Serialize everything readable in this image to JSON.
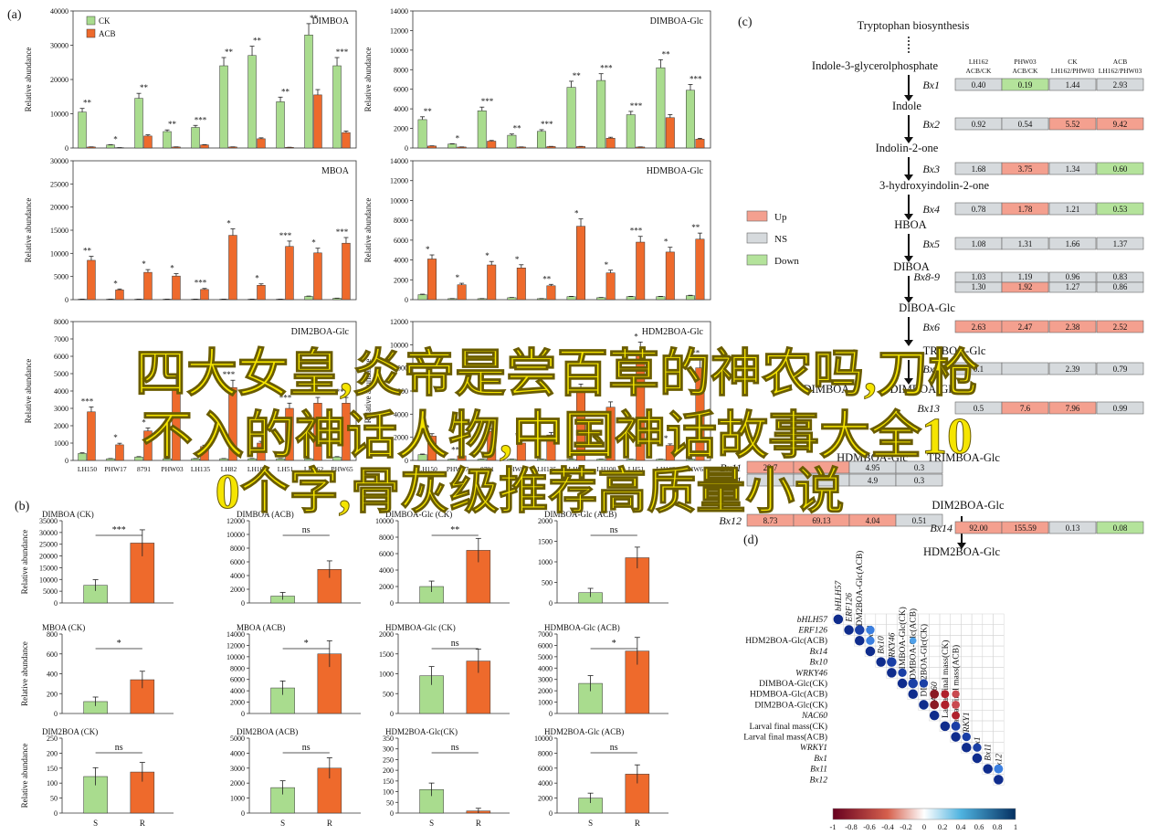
{
  "panel_labels": {
    "a": "(a)",
    "b": "(b)",
    "c": "(c)",
    "d": "(d)"
  },
  "y_axis_label": "Relative abundance",
  "legend_a": {
    "ck": "CK",
    "acb": "ACB"
  },
  "legend_c": {
    "up": "Up",
    "ns": "NS",
    "down": "Down"
  },
  "colors": {
    "ck": "#a9dc8e",
    "acb": "#ee6a2c",
    "up": "#f4a08f",
    "ns": "#d6dadd",
    "down": "#b4e39b",
    "dot_pos": "#0f2c8c",
    "dot_neg": "#b0212c"
  },
  "overlay_text": {
    "line1": "四大女皇,炎帝是尝百草的神农吗,刀枪",
    "line2": "不入的神话人物,中国神话故事大全10",
    "line3": "0个字,骨灰级推荐高质量小说"
  },
  "chart_data": [
    {
      "type": "bar",
      "panel": "a",
      "title": "DIMBOA",
      "categories": [
        "LH150",
        "PHW17",
        "8791",
        "PHW03",
        "LH135",
        "LH82",
        "LH100",
        "LH51",
        "LH162",
        "PHW65"
      ],
      "series": [
        {
          "name": "CK",
          "values": [
            10500,
            900,
            14500,
            4800,
            6000,
            24000,
            27000,
            13500,
            33000,
            24000
          ]
        },
        {
          "name": "ACB",
          "values": [
            300,
            100,
            3500,
            300,
            900,
            300,
            2700,
            200,
            15500,
            4500
          ]
        }
      ],
      "ylim": [
        0,
        40000
      ],
      "yticks": [
        0,
        10000,
        20000,
        30000,
        40000
      ],
      "marks": [
        "**",
        "*",
        "**",
        "**",
        "***",
        "**",
        "**",
        "**",
        "**",
        "***"
      ]
    },
    {
      "type": "bar",
      "panel": "a",
      "title": "DIMBOA-Glc",
      "categories": [
        "LH150",
        "PHW17",
        "8791",
        "PHW03",
        "LH135",
        "LH82",
        "LH100",
        "LH51",
        "LH162",
        "PHW65"
      ],
      "series": [
        {
          "name": "CK",
          "values": [
            2900,
            400,
            3800,
            1300,
            1700,
            6200,
            6900,
            3400,
            8200,
            5900
          ]
        },
        {
          "name": "ACB",
          "values": [
            200,
            100,
            700,
            100,
            150,
            150,
            1000,
            100,
            3100,
            900
          ]
        }
      ],
      "ylim": [
        0,
        14000
      ],
      "yticks": [
        0,
        2000,
        4000,
        6000,
        8000,
        10000,
        12000,
        14000
      ],
      "marks": [
        "**",
        "*",
        "***",
        "**",
        "***",
        "**",
        "***",
        "***",
        "**",
        "***"
      ]
    },
    {
      "type": "bar",
      "panel": "a",
      "title": "MBOA",
      "categories": [
        "LH150",
        "PHW17",
        "8791",
        "PHW03",
        "LH135",
        "LH82",
        "LH100",
        "LH51",
        "LH162",
        "PHW65"
      ],
      "series": [
        {
          "name": "CK",
          "values": [
            100,
            100,
            100,
            100,
            100,
            100,
            100,
            100,
            700,
            300
          ]
        },
        {
          "name": "ACB",
          "values": [
            8500,
            2100,
            5900,
            5100,
            2200,
            13900,
            3100,
            11500,
            10100,
            12200
          ]
        }
      ],
      "ylim": [
        0,
        30000
      ],
      "yticks": [
        0,
        5000,
        10000,
        15000,
        20000,
        25000,
        30000
      ],
      "marks": [
        "**",
        "*",
        "*",
        "*",
        "***",
        "*",
        "*",
        "***",
        "*",
        "***"
      ]
    },
    {
      "type": "bar",
      "panel": "a",
      "title": "HDMBOA-Glc",
      "categories": [
        "LH150",
        "PHW17",
        "8791",
        "PHW03",
        "LH135",
        "LH82",
        "LH100",
        "LH51",
        "LH162",
        "PHW65"
      ],
      "series": [
        {
          "name": "CK",
          "values": [
            500,
            100,
            100,
            200,
            100,
            300,
            200,
            300,
            300,
            400
          ]
        },
        {
          "name": "ACB",
          "values": [
            4100,
            1500,
            3500,
            3200,
            1400,
            7400,
            2700,
            5800,
            4800,
            6100
          ]
        }
      ],
      "ylim": [
        0,
        14000
      ],
      "yticks": [
        0,
        2000,
        4000,
        6000,
        8000,
        10000,
        12000,
        14000
      ],
      "marks": [
        "*",
        "*",
        "*",
        "*",
        "**",
        "*",
        "*",
        "***",
        "*",
        "**"
      ]
    },
    {
      "type": "bar",
      "panel": "a",
      "title": "DIM2BOA-Glc",
      "categories": [
        "LH150",
        "PHW17",
        "8791",
        "PHW03",
        "LH135",
        "LH82",
        "LH100",
        "LH51",
        "LH162",
        "PHW65"
      ],
      "series": [
        {
          "name": "CK",
          "values": [
            400,
            100,
            200,
            100,
            100,
            100,
            100,
            100,
            100,
            200
          ]
        },
        {
          "name": "ACB",
          "values": [
            2800,
            900,
            1700,
            4300,
            800,
            4200,
            1000,
            3000,
            3300,
            3300
          ]
        }
      ],
      "ylim": [
        0,
        8000
      ],
      "yticks": [
        0,
        1000,
        2000,
        3000,
        4000,
        5000,
        6000,
        7000,
        8000
      ],
      "marks": [
        "***",
        "*",
        "*",
        "",
        "",
        "***",
        "*",
        "***",
        "***",
        "***"
      ]
    },
    {
      "type": "bar",
      "panel": "a",
      "title": "HDM2BOA-Glc",
      "categories": [
        "LH150",
        "PHW17",
        "8791",
        "PHW03",
        "LH135",
        "LH82",
        "LH100",
        "LH51",
        "LH162",
        "PHW65"
      ],
      "series": [
        {
          "name": "CK",
          "values": [
            500,
            100,
            100,
            100,
            100,
            100,
            100,
            100,
            100,
            100
          ]
        },
        {
          "name": "ACB",
          "values": [
            2100,
            400,
            2500,
            1500,
            2200,
            6000,
            4600,
            9300,
            1300,
            8000
          ]
        }
      ],
      "ylim": [
        0,
        12000
      ],
      "yticks": [
        0,
        2000,
        4000,
        6000,
        8000,
        10000,
        12000
      ],
      "marks": [
        "*",
        "***",
        "*",
        "*",
        "",
        "***",
        "",
        "*",
        "*",
        "**"
      ]
    },
    {
      "type": "bar",
      "panel": "b",
      "title": "DIMBOA (CK)",
      "categories": [
        "S",
        "R"
      ],
      "values": [
        7500,
        25500
      ],
      "ylim": [
        0,
        35000
      ],
      "yticks": [
        0,
        5000,
        10000,
        15000,
        20000,
        25000,
        30000,
        35000
      ],
      "sig": "***"
    },
    {
      "type": "bar",
      "panel": "b",
      "title": "DIMBOA (ACB)",
      "categories": [
        "S",
        "R"
      ],
      "values": [
        1000,
        4900
      ],
      "ylim": [
        0,
        12000
      ],
      "yticks": [
        0,
        2000,
        4000,
        6000,
        8000,
        10000,
        12000
      ],
      "sig": "ns"
    },
    {
      "type": "bar",
      "panel": "b",
      "title": "DIMBOA-Glc (CK)",
      "categories": [
        "S",
        "R"
      ],
      "values": [
        2000,
        6400
      ],
      "ylim": [
        0,
        10000
      ],
      "yticks": [
        0,
        2000,
        4000,
        6000,
        8000,
        10000
      ],
      "sig": "**"
    },
    {
      "type": "bar",
      "panel": "b",
      "title": "DIMBOA-Glc (ACB)",
      "categories": [
        "S",
        "R"
      ],
      "values": [
        250,
        1100
      ],
      "ylim": [
        0,
        2000
      ],
      "yticks": [
        0,
        500,
        1000,
        1500,
        2000
      ],
      "sig": "ns"
    },
    {
      "type": "bar",
      "panel": "b",
      "title": "MBOA (CK)",
      "categories": [
        "S",
        "R"
      ],
      "values": [
        120,
        340
      ],
      "ylim": [
        0,
        800
      ],
      "yticks": [
        0,
        200,
        400,
        600,
        800
      ],
      "sig": "*"
    },
    {
      "type": "bar",
      "panel": "b",
      "title": "MBOA (ACB)",
      "categories": [
        "S",
        "R"
      ],
      "values": [
        4500,
        10500
      ],
      "ylim": [
        0,
        14000
      ],
      "yticks": [
        0,
        2000,
        4000,
        6000,
        8000,
        10000,
        12000,
        14000
      ],
      "sig": "*"
    },
    {
      "type": "bar",
      "panel": "b",
      "title": "HDMBOA-Glc (CK)",
      "categories": [
        "S",
        "R"
      ],
      "values": [
        950,
        1320
      ],
      "ylim": [
        0,
        2000
      ],
      "yticks": [
        0,
        500,
        1000,
        1500,
        2000
      ],
      "sig": "ns"
    },
    {
      "type": "bar",
      "panel": "b",
      "title": "HDMBOA-Glc (ACB)",
      "categories": [
        "S",
        "R"
      ],
      "values": [
        2650,
        5500
      ],
      "ylim": [
        0,
        7000
      ],
      "yticks": [
        0,
        1000,
        2000,
        3000,
        4000,
        5000,
        6000,
        7000
      ],
      "sig": "*"
    },
    {
      "type": "bar",
      "panel": "b",
      "title": "DIM2BOA (CK)",
      "categories": [
        "S",
        "R"
      ],
      "values": [
        122,
        137
      ],
      "ylim": [
        0,
        250
      ],
      "yticks": [
        0,
        50,
        100,
        150,
        200,
        250
      ],
      "sig": "ns"
    },
    {
      "type": "bar",
      "panel": "b",
      "title": "DIM2BOA (ACB)",
      "categories": [
        "S",
        "R"
      ],
      "values": [
        1700,
        3000
      ],
      "ylim": [
        0,
        5000
      ],
      "yticks": [
        0,
        1000,
        2000,
        3000,
        4000,
        5000
      ],
      "sig": "ns"
    },
    {
      "type": "bar",
      "panel": "b",
      "title": "HDM2BOA-Glc(CK)",
      "categories": [
        "S",
        "R"
      ],
      "values": [
        110,
        10
      ],
      "ylim": [
        0,
        350
      ],
      "yticks": [
        0,
        50,
        100,
        150,
        200,
        250,
        300,
        350
      ],
      "sig": "ns"
    },
    {
      "type": "bar",
      "panel": "b",
      "title": "HDM2BOA-Glc (ACB)",
      "categories": [
        "S",
        "R"
      ],
      "values": [
        2000,
        5200
      ],
      "ylim": [
        0,
        10000
      ],
      "yticks": [
        0,
        2000,
        4000,
        6000,
        8000,
        10000
      ],
      "sig": "ns"
    }
  ],
  "pathway": {
    "column_headers": [
      [
        "LH162",
        "ACB/CK"
      ],
      [
        "PHW03",
        "ACB/CK"
      ],
      [
        "CK",
        "LH162/PHW03"
      ],
      [
        "ACB",
        "LH162/PHW03"
      ]
    ],
    "metabolites": [
      "Tryptophan biosynthesis",
      "Indole-3-glycerolphosphate",
      "Indole",
      "Indolin-2-one",
      "3-hydroxyindolin-2-one",
      "HBOA",
      "DIBOA",
      "DIBOA-Glc",
      "TRIBOA-Glc",
      "DIMBOA",
      "DIMBOA-Glc",
      "HDMBOA-Glc",
      "TRIMBOA-Glc",
      "DIM2BOA-Glc",
      "HDM2BOA-Glc"
    ],
    "genes": [
      {
        "name": "Bx1",
        "values": [
          "0.40",
          "0.19",
          "1.44",
          "2.93"
        ],
        "status": [
          "ns",
          "down",
          "ns",
          "ns"
        ]
      },
      {
        "name": "Bx2",
        "values": [
          "0.92",
          "0.54",
          "5.52",
          "9.42"
        ],
        "status": [
          "ns",
          "ns",
          "up",
          "up"
        ]
      },
      {
        "name": "Bx3",
        "values": [
          "1.68",
          "3.75",
          "1.34",
          "0.60"
        ],
        "status": [
          "ns",
          "up",
          "ns",
          "down"
        ]
      },
      {
        "name": "Bx4",
        "values": [
          "0.78",
          "1.78",
          "1.21",
          "0.53"
        ],
        "status": [
          "ns",
          "up",
          "ns",
          "down"
        ]
      },
      {
        "name": "Bx5",
        "values": [
          "1.08",
          "1.31",
          "1.66",
          "1.37"
        ],
        "status": [
          "ns",
          "ns",
          "ns",
          "ns"
        ]
      },
      {
        "name": "Bx8-9",
        "values": [
          "1.03",
          "1.19",
          "0.96",
          "0.83"
        ],
        "status": [
          "ns",
          "ns",
          "ns",
          "ns"
        ]
      },
      {
        "name": "",
        "values": [
          "1.30",
          "1.92",
          "1.27",
          "0.86"
        ],
        "status": [
          "ns",
          "up",
          "ns",
          "ns"
        ]
      },
      {
        "name": "Bx6",
        "values": [
          "2.63",
          "2.47",
          "2.38",
          "2.52"
        ],
        "status": [
          "up",
          "up",
          "up",
          "up"
        ]
      },
      {
        "name": "Bx7",
        "values": [
          "0.1",
          "",
          "2.39",
          "0.79"
        ],
        "status": [
          "ns",
          "ns",
          "ns",
          "ns"
        ]
      },
      {
        "name": "Bx13",
        "values": [
          "0.5",
          "7.6",
          "7.96",
          "0.99"
        ],
        "status": [
          "ns",
          "up",
          "up",
          "ns"
        ]
      },
      {
        "name": "Bx11",
        "values": [
          "29.7",
          "",
          "4.95",
          "0.3"
        ],
        "status": [
          "up",
          "up",
          "ns",
          "ns"
        ]
      },
      {
        "name": "Bx11b",
        "values": [
          "",
          "",
          "4.9",
          "0.3"
        ],
        "status": [
          "ns",
          "ns",
          "ns",
          "ns"
        ]
      },
      {
        "name": "Bx12",
        "values": [
          "8.73",
          "69.13",
          "4.04",
          "0.51"
        ],
        "status": [
          "up",
          "up",
          "up",
          "ns"
        ]
      },
      {
        "name": "Bx14",
        "values": [
          "92.00",
          "155.59",
          "0.13",
          "0.08"
        ],
        "status": [
          "up",
          "up",
          "ns",
          "down"
        ]
      }
    ],
    "second_col_header": [
      [
        "LH162",
        "ACB/CK"
      ],
      [
        "PHW03",
        "ACB/CK"
      ],
      [
        "CK",
        "LH162/PHW03"
      ],
      [
        "ACB",
        "LH162/PHW03"
      ]
    ],
    "xtick_S": "S",
    "xtick_R": "R"
  },
  "corr": {
    "labels": [
      "bHLH57",
      "ERF126",
      "HDM2BOA-Glc(ACB)",
      "Bx14",
      "Bx10",
      "WRKY46",
      "DIMBOA-Glc(CK)",
      "HDMBOA-Glc(ACB)",
      "DIM2BOA-Glc(CK)",
      "NAC60",
      "Larval final mass(CK)",
      "Larval final mass(ACB)",
      "WRKY1",
      "Bx1",
      "Bx11",
      "Bx12"
    ],
    "italic": [
      true,
      true,
      false,
      true,
      true,
      true,
      false,
      false,
      false,
      true,
      false,
      false,
      true,
      true,
      true,
      true
    ],
    "scale_ticks": [
      "-1",
      "-0.8",
      "-0.6",
      "-0.4",
      "-0.2",
      "0",
      "0.2",
      "0.4",
      "0.6",
      "0.8",
      "1"
    ]
  }
}
